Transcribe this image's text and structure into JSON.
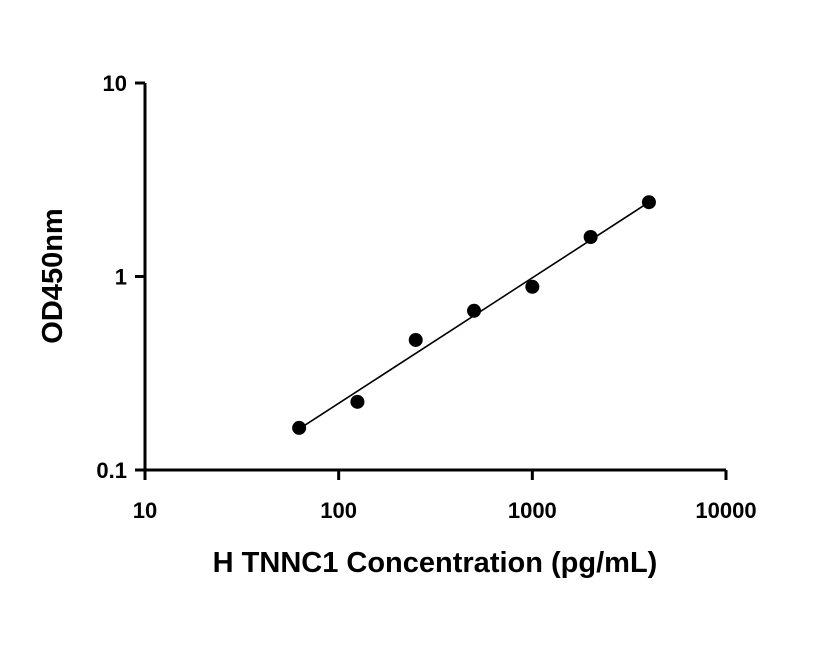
{
  "chart_data": {
    "type": "scatter",
    "title": "",
    "xlabel": "H TNNC1 Concentration (pg/mL)",
    "ylabel": "OD450nm",
    "x_scale": "log",
    "y_scale": "log",
    "xlim": [
      10,
      10000
    ],
    "ylim": [
      0.1,
      10
    ],
    "x_ticks": [
      10,
      100,
      1000,
      10000
    ],
    "x_tick_labels": [
      "10",
      "100",
      "1000",
      "10000"
    ],
    "y_ticks": [
      0.1,
      1,
      10
    ],
    "y_tick_labels": [
      "0.1",
      "1",
      "10"
    ],
    "grid": false,
    "legend": "none",
    "series": [
      {
        "x": [
          62.5,
          125,
          250,
          500,
          1000,
          2000,
          4000
        ],
        "y": [
          0.165,
          0.225,
          0.47,
          0.665,
          0.885,
          1.6,
          2.42
        ],
        "marker": "circle",
        "color": "#000000"
      }
    ],
    "fit_line": {
      "x": [
        62.5,
        4000
      ],
      "y": [
        0.163,
        2.42
      ],
      "color": "#000000"
    }
  }
}
